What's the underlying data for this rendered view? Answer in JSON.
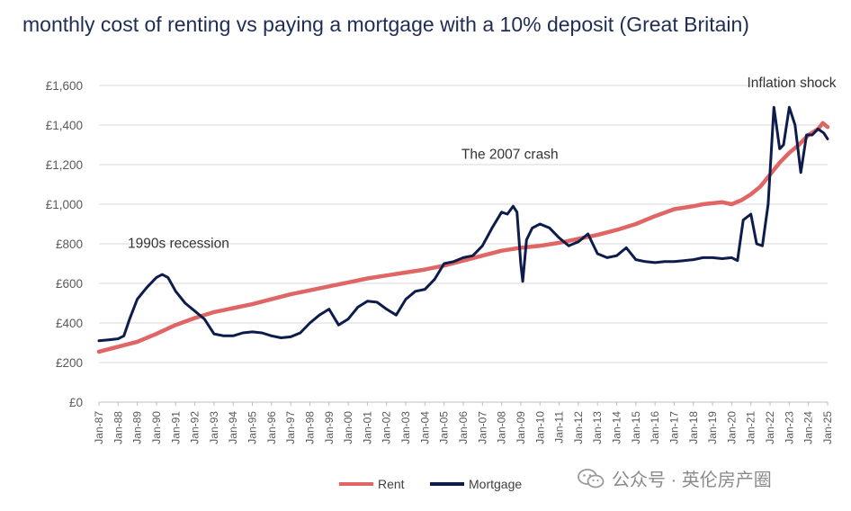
{
  "chart_data": {
    "type": "line",
    "title": "monthly cost of renting vs paying a mortgage with a 10% deposit (Great Britain)",
    "xlabel": "",
    "ylabel": "",
    "ylim": [
      0,
      1600
    ],
    "y_ticks": [
      "£0",
      "£200",
      "£400",
      "£600",
      "£800",
      "£1,000",
      "£1,200",
      "£1,400",
      "£1,600"
    ],
    "y_tick_values": [
      0,
      200,
      400,
      600,
      800,
      1000,
      1200,
      1400,
      1600
    ],
    "x_ticks": [
      "Jan-87",
      "Jan-88",
      "Jan-89",
      "Jan-90",
      "Jan-91",
      "Jan-92",
      "Jan-93",
      "Jan-94",
      "Jan-95",
      "Jan-96",
      "Jan-97",
      "Jan-98",
      "Jan-99",
      "Jan-00",
      "Jan-01",
      "Jan-02",
      "Jan-03",
      "Jan-04",
      "Jan-05",
      "Jan-06",
      "Jan-07",
      "Jan-08",
      "Jan-09",
      "Jan-10",
      "Jan-11",
      "Jan-12",
      "Jan-13",
      "Jan-14",
      "Jan-15",
      "Jan-16",
      "Jan-17",
      "Jan-18",
      "Jan-19",
      "Jan-20",
      "Jan-21",
      "Jan-22",
      "Jan-23",
      "Jan-24",
      "Jan-25"
    ],
    "x_range": [
      1987.0,
      2025.0
    ],
    "grid": true,
    "legend_position": "bottom",
    "series": [
      {
        "name": "Rent",
        "color": "#e06666",
        "x": [
          1987.0,
          1988.0,
          1989.0,
          1990.0,
          1991.0,
          1992.0,
          1993.0,
          1994.0,
          1995.0,
          1996.0,
          1997.0,
          1998.0,
          1999.0,
          2000.0,
          2001.0,
          2002.0,
          2003.0,
          2004.0,
          2005.0,
          2006.0,
          2007.0,
          2008.0,
          2009.0,
          2010.0,
          2011.0,
          2012.0,
          2013.0,
          2014.0,
          2015.0,
          2016.0,
          2017.0,
          2018.0,
          2018.5,
          2019.0,
          2019.5,
          2020.0,
          2020.5,
          2021.0,
          2021.5,
          2022.0,
          2022.5,
          2023.0,
          2023.5,
          2024.0,
          2024.5,
          2024.75,
          2025.0
        ],
        "y": [
          255,
          280,
          305,
          345,
          390,
          425,
          455,
          475,
          495,
          520,
          545,
          565,
          585,
          605,
          625,
          640,
          655,
          670,
          690,
          715,
          740,
          765,
          780,
          790,
          805,
          825,
          845,
          870,
          900,
          940,
          975,
          990,
          1000,
          1005,
          1010,
          1000,
          1020,
          1050,
          1090,
          1150,
          1210,
          1260,
          1300,
          1350,
          1380,
          1410,
          1390
        ]
      },
      {
        "name": "Mortgage",
        "color": "#0d1c4a",
        "x": [
          1987.0,
          1987.5,
          1988.0,
          1988.3,
          1988.6,
          1989.0,
          1989.5,
          1990.0,
          1990.3,
          1990.6,
          1991.0,
          1991.5,
          1992.0,
          1992.5,
          1993.0,
          1993.5,
          1994.0,
          1994.5,
          1995.0,
          1995.5,
          1996.0,
          1996.5,
          1997.0,
          1997.5,
          1998.0,
          1998.5,
          1999.0,
          1999.5,
          2000.0,
          2000.5,
          2001.0,
          2001.5,
          2002.0,
          2002.5,
          2003.0,
          2003.5,
          2004.0,
          2004.5,
          2005.0,
          2005.5,
          2006.0,
          2006.5,
          2007.0,
          2007.5,
          2008.0,
          2008.3,
          2008.6,
          2008.8,
          2009.0,
          2009.1,
          2009.3,
          2009.6,
          2010.0,
          2010.5,
          2011.0,
          2011.5,
          2012.0,
          2012.5,
          2013.0,
          2013.5,
          2014.0,
          2014.5,
          2015.0,
          2015.5,
          2016.0,
          2016.5,
          2017.0,
          2017.5,
          2018.0,
          2018.5,
          2019.0,
          2019.5,
          2020.0,
          2020.3,
          2020.6,
          2021.0,
          2021.3,
          2021.6,
          2021.9,
          2022.2,
          2022.5,
          2022.7,
          2023.0,
          2023.3,
          2023.6,
          2023.9,
          2024.2,
          2024.5,
          2024.8,
          2025.0
        ],
        "y": [
          310,
          315,
          320,
          335,
          420,
          520,
          580,
          630,
          645,
          630,
          560,
          500,
          460,
          420,
          345,
          335,
          335,
          350,
          355,
          350,
          335,
          325,
          330,
          350,
          400,
          440,
          470,
          390,
          420,
          480,
          510,
          505,
          470,
          440,
          520,
          560,
          570,
          620,
          700,
          710,
          730,
          740,
          790,
          880,
          960,
          950,
          990,
          960,
          700,
          610,
          820,
          880,
          900,
          880,
          830,
          790,
          810,
          850,
          750,
          730,
          740,
          780,
          720,
          710,
          705,
          710,
          710,
          715,
          720,
          730,
          730,
          725,
          730,
          715,
          920,
          950,
          800,
          790,
          1000,
          1490,
          1280,
          1300,
          1490,
          1400,
          1160,
          1350,
          1350,
          1380,
          1360,
          1330
        ]
      }
    ],
    "annotations": [
      {
        "text": "1990s recession",
        "x": 1988.5,
        "y": 780
      },
      {
        "text": "The 2007 crash",
        "x": 2005.9,
        "y": 1230
      },
      {
        "text": "Inflation shock",
        "x": 2020.8,
        "y": 1590
      }
    ],
    "legend": {
      "rent_label": "Rent",
      "mortgage_label": "Mortgage"
    }
  },
  "watermark": {
    "text": "公众号 · 英伦房产圈",
    "icon": "wechat-icon"
  }
}
